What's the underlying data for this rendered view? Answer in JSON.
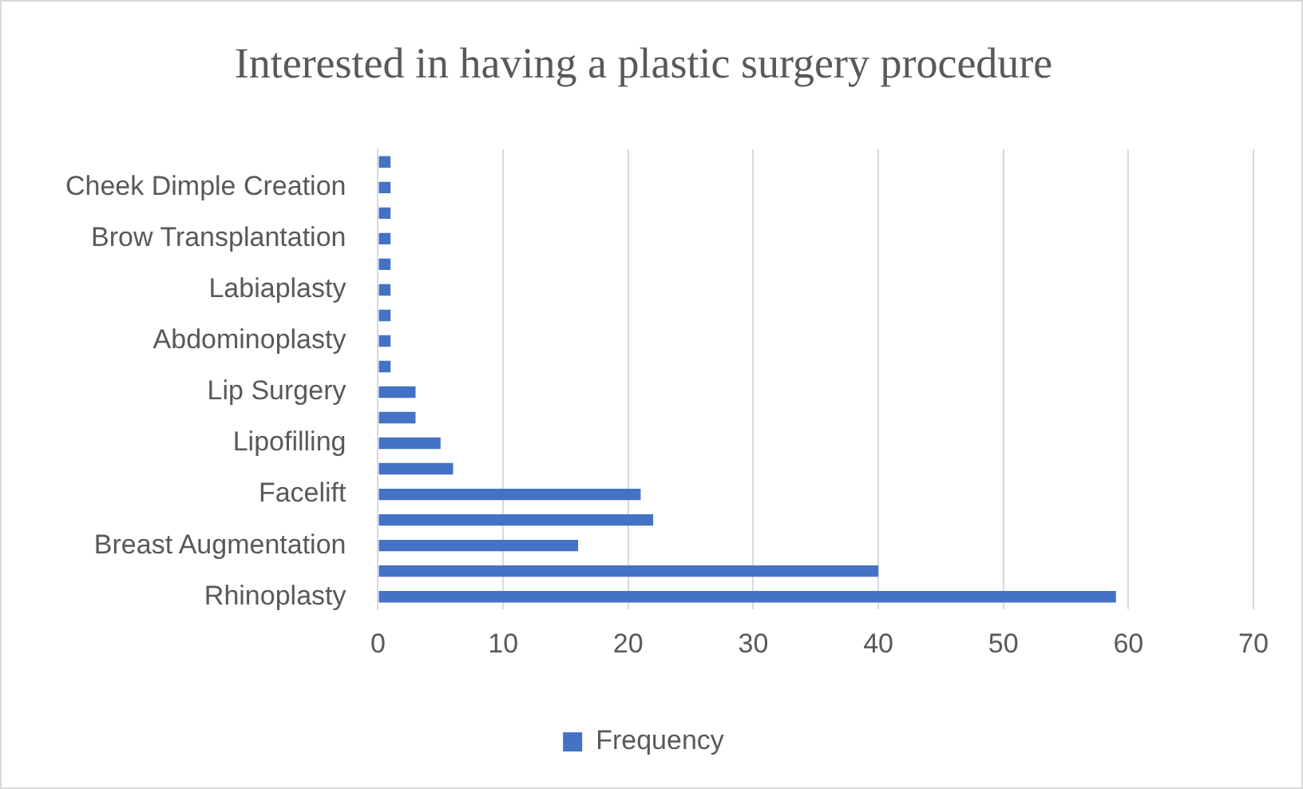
{
  "chart_data": {
    "type": "bar",
    "orientation": "horizontal",
    "title": "Interested in having a plastic surgery procedure",
    "categories": [
      null,
      "Cheek Dimple Creation",
      null,
      "Brow Transplantation",
      null,
      "Labiaplasty",
      null,
      "Abdominoplasty",
      null,
      "Lip Surgery",
      null,
      "Lipofilling",
      null,
      "Facelift",
      null,
      "Breast Augmentation",
      null,
      "Rhinoplasty"
    ],
    "series": [
      {
        "name": "Frequency",
        "color": "#4472c4",
        "values": [
          1,
          1,
          1,
          1,
          1,
          1,
          1,
          1,
          1,
          3,
          3,
          5,
          6,
          21,
          22,
          16,
          40,
          59
        ]
      }
    ],
    "xlim": [
      0,
      70
    ],
    "xticks": [
      0,
      10,
      20,
      30,
      40,
      50,
      60,
      70
    ],
    "grid": "x",
    "legend": "bottom"
  }
}
